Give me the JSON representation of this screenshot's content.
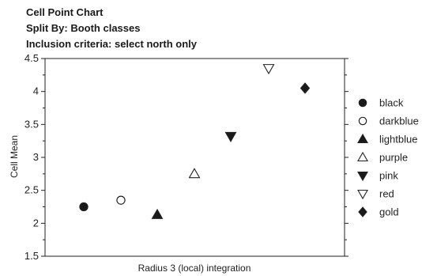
{
  "chart_data": {
    "type": "scatter",
    "title": "Cell Point Chart",
    "subtitle_lines": [
      "Split By: Booth classes",
      "Inclusion criteria: select north only"
    ],
    "xlabel": "Radius 3 (local) integration",
    "ylabel": "Cell Mean",
    "ylim": [
      1.5,
      4.5
    ],
    "yticks": [
      "1.5",
      "2",
      "2.5",
      "3",
      "3.5",
      "4",
      "4.5"
    ],
    "legend_position": "right",
    "series": [
      {
        "name": "black",
        "marker": "filled-circle",
        "value": 2.25
      },
      {
        "name": "darkblue",
        "marker": "open-circle",
        "value": 2.35
      },
      {
        "name": "lightblue",
        "marker": "filled-triangle-up",
        "value": 2.13
      },
      {
        "name": "purple",
        "marker": "open-triangle-up",
        "value": 2.75
      },
      {
        "name": "pink",
        "marker": "filled-triangle-down",
        "value": 3.32
      },
      {
        "name": "red",
        "marker": "open-triangle-down",
        "value": 4.35
      },
      {
        "name": "gold",
        "marker": "filled-diamond",
        "value": 4.05
      }
    ]
  }
}
